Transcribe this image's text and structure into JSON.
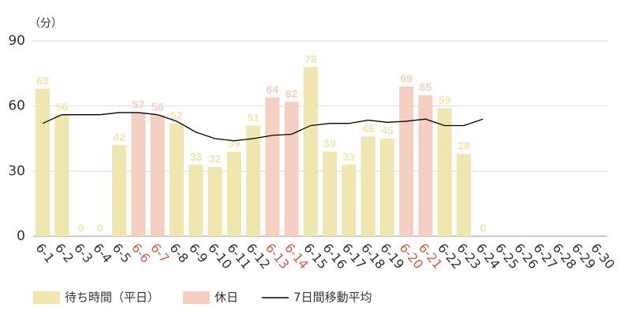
{
  "chart_data": {
    "type": "bar",
    "y_label": "（分）",
    "categories": [
      "6-1",
      "6-2",
      "6-3",
      "6-4",
      "6-5",
      "6-6",
      "6-7",
      "6-8",
      "6-9",
      "6-10",
      "6-11",
      "6-12",
      "6-13",
      "6-14",
      "6-15",
      "6-16",
      "6-17",
      "6-18",
      "6-19",
      "6-20",
      "6-21",
      "6-22",
      "6-23",
      "6-24",
      "6-25",
      "6-26",
      "6-27",
      "6-28",
      "6-29",
      "6-30"
    ],
    "series": [
      {
        "name": "待ち時間（平日）",
        "color": "#f0e6b0",
        "label_color": "#333333",
        "values": [
          68,
          56,
          0,
          0,
          42,
          null,
          null,
          52,
          33,
          32,
          39,
          51,
          null,
          null,
          78,
          39,
          33,
          46,
          45,
          null,
          null,
          59,
          38,
          0,
          null,
          null,
          null,
          null,
          null,
          null
        ]
      },
      {
        "name": "休日",
        "color": "#f4cfc2",
        "label_color": "#d0604a",
        "values": [
          null,
          null,
          null,
          null,
          null,
          57,
          56,
          null,
          null,
          null,
          null,
          null,
          64,
          62,
          null,
          null,
          null,
          null,
          null,
          69,
          65,
          null,
          null,
          null,
          null,
          null,
          null,
          null,
          null,
          null
        ]
      },
      {
        "name": "7日間移動平均",
        "type": "line",
        "color": "#000000",
        "values": [
          52,
          56,
          56,
          56,
          57,
          57,
          56,
          53,
          48,
          45,
          44,
          45,
          46.5,
          47,
          51,
          52,
          52,
          53.5,
          52.5,
          53,
          54,
          51,
          51,
          54,
          null,
          null,
          null,
          null,
          null,
          null
        ]
      }
    ],
    "ylim": [
      0,
      90
    ],
    "yticks": [
      0,
      30,
      60,
      90
    ],
    "grid": true
  }
}
